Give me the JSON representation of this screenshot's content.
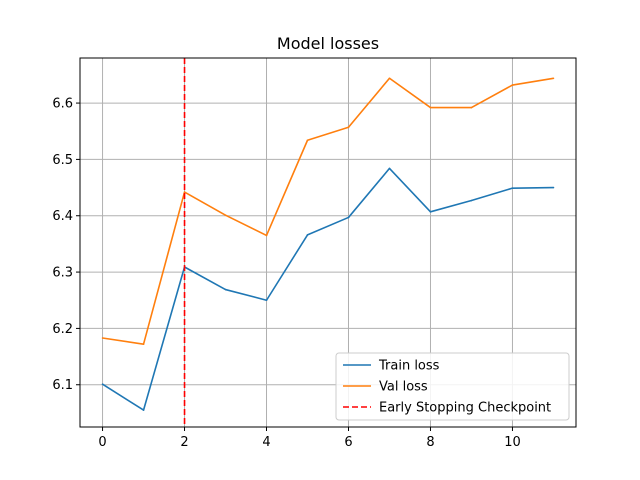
{
  "chart_data": {
    "type": "line",
    "title": "Model losses",
    "xlabel": "",
    "ylabel": "",
    "x": [
      0,
      1,
      2,
      3,
      4,
      5,
      6,
      7,
      8,
      9,
      10,
      11
    ],
    "xlim": [
      -0.55,
      11.55
    ],
    "ylim": [
      6.025,
      6.68
    ],
    "xticks": [
      0,
      2,
      4,
      6,
      8,
      10
    ],
    "yticks": [
      6.1,
      6.2,
      6.3,
      6.4,
      6.5,
      6.6
    ],
    "grid": true,
    "legend_position": "lower-right",
    "series": [
      {
        "name": "Train loss",
        "color": "#1f77b4",
        "style": "solid",
        "values": [
          6.101,
          6.055,
          6.309,
          6.269,
          6.25,
          6.366,
          6.397,
          6.484,
          6.407,
          6.427,
          6.449,
          6.45
        ]
      },
      {
        "name": "Val loss",
        "color": "#ff7f0e",
        "style": "solid",
        "values": [
          6.183,
          6.172,
          6.442,
          6.401,
          6.365,
          6.534,
          6.557,
          6.644,
          6.592,
          6.592,
          6.632,
          6.644
        ]
      }
    ],
    "vlines": [
      {
        "name": "Early Stopping Checkpoint",
        "x": 2,
        "color": "#ff0000",
        "style": "dashed"
      }
    ]
  }
}
